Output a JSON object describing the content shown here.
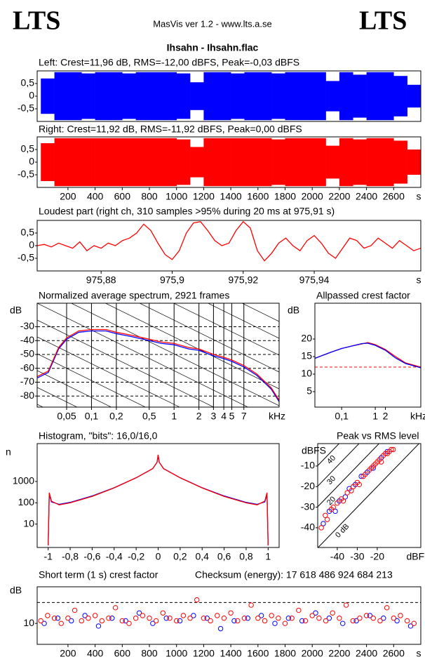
{
  "header": {
    "logo_left": "LTS",
    "logo_right": "LTS",
    "app": "MasVis ver 1.2 - www.lts.a.se",
    "file": "Ihsahn - Ihsahn.flac"
  },
  "chart_data": [
    {
      "type": "area",
      "title": "Left: Crest=11,96 dB, RMS=-12,00 dBFS, Peak=-0,03 dBFS",
      "xlim": [
        -27,
        2800
      ],
      "ylim": [
        -1,
        1
      ],
      "yticks": [
        {
          "value": 0.5,
          "label": "0,5"
        },
        0,
        {
          "value": -0.5,
          "label": "-0,5"
        }
      ],
      "series": [
        {
          "color": "#0000ff",
          "x": [
            0,
            100,
            200,
            300,
            400,
            500,
            600,
            700,
            800,
            900,
            1000,
            1100,
            1200,
            1300,
            1400,
            1500,
            1600,
            1700,
            1800,
            1900,
            2000,
            2100,
            2200,
            2300,
            2400,
            2500,
            2600,
            2700
          ],
          "values": [
            0.7,
            0.95,
            0.95,
            0.9,
            0.95,
            0.95,
            0.9,
            0.95,
            0.95,
            0.95,
            0.9,
            0.55,
            0.95,
            0.95,
            0.9,
            0.95,
            0.95,
            0.9,
            0.95,
            0.95,
            0.95,
            0.6,
            0.95,
            0.85,
            0.95,
            0.95,
            0.8,
            0.45
          ]
        }
      ]
    },
    {
      "type": "area",
      "title": "Right: Crest=11,92 dB, RMS=-11,92 dBFS, Peak=0,00 dBFS",
      "xlim": [
        -27,
        2800
      ],
      "ylim": [
        -1,
        1
      ],
      "xlabel": "s",
      "yticks": [
        {
          "value": 0.5,
          "label": "0,5"
        },
        0,
        {
          "value": -0.5,
          "label": "-0,5"
        }
      ],
      "xticks": [
        200,
        400,
        600,
        800,
        1000,
        1200,
        1400,
        1600,
        1800,
        2000,
        2200,
        2400,
        2600
      ],
      "series": [
        {
          "color": "#ff0000",
          "x": [
            0,
            100,
            200,
            300,
            400,
            500,
            600,
            700,
            800,
            900,
            1000,
            1100,
            1200,
            1300,
            1400,
            1500,
            1600,
            1700,
            1800,
            1900,
            2000,
            2100,
            2200,
            2300,
            2400,
            2500,
            2600,
            2700
          ],
          "values": [
            0.75,
            0.95,
            0.95,
            0.95,
            0.95,
            0.95,
            0.95,
            0.95,
            0.95,
            0.95,
            0.9,
            0.6,
            0.95,
            0.95,
            0.95,
            0.95,
            0.95,
            0.9,
            0.95,
            0.95,
            0.95,
            0.65,
            0.95,
            0.9,
            0.95,
            0.95,
            0.85,
            0.5
          ]
        }
      ]
    },
    {
      "type": "line",
      "title": "Loudest part (right ch, 310 samples >95% during 20 ms at 975,91 s)",
      "xlim": [
        975.862,
        975.97
      ],
      "ylim": [
        -1,
        1
      ],
      "xlabel": "s",
      "yticks": [
        {
          "value": 0.5,
          "label": "0,5"
        },
        0,
        {
          "value": -0.5,
          "label": "-0,5"
        }
      ],
      "xticks": [
        {
          "value": 975.88,
          "label": "975,88"
        },
        {
          "value": 975.9,
          "label": "975,9"
        },
        {
          "value": 975.92,
          "label": "975,92"
        },
        {
          "value": 975.94,
          "label": "975,94"
        }
      ],
      "series": [
        {
          "color": "#ff0000",
          "x": [
            975.862,
            975.864,
            975.866,
            975.868,
            975.87,
            975.872,
            975.874,
            975.876,
            975.878,
            975.88,
            975.882,
            975.884,
            975.886,
            975.888,
            975.89,
            975.892,
            975.894,
            975.896,
            975.898,
            975.9,
            975.902,
            975.904,
            975.906,
            975.908,
            975.91,
            975.912,
            975.914,
            975.916,
            975.918,
            975.92,
            975.922,
            975.924,
            975.926,
            975.928,
            975.93,
            975.932,
            975.934,
            975.936,
            975.938,
            975.94,
            975.942,
            975.944,
            975.946,
            975.948,
            975.95,
            975.952,
            975.954,
            975.956,
            975.958,
            975.96,
            975.962,
            975.964,
            975.966,
            975.968,
            975.97
          ],
          "values": [
            0.0,
            0.05,
            -0.05,
            0.1,
            0.0,
            -0.1,
            0.15,
            -0.2,
            0.0,
            -0.1,
            0.1,
            0.0,
            0.2,
            0.3,
            0.5,
            0.85,
            0.6,
            0.1,
            -0.35,
            -0.55,
            -0.2,
            0.5,
            0.9,
            0.95,
            0.6,
            0.2,
            0.0,
            0.1,
            0.6,
            0.95,
            0.7,
            -0.2,
            -0.6,
            -0.3,
            0.1,
            0.3,
            0.0,
            -0.2,
            0.2,
            0.4,
            0.1,
            -0.3,
            -0.5,
            -0.1,
            0.3,
            0.2,
            -0.1,
            0.0,
            0.3,
            0.1,
            -0.1,
            0.2,
            0.0,
            -0.2,
            -0.1
          ]
        }
      ]
    },
    {
      "type": "line",
      "title": "Normalized average spectrum, 2921 frames",
      "xscale": "log",
      "xlim": [
        0.022,
        18.7
      ],
      "ylim": [
        -88,
        -13
      ],
      "xlabel": "kHz",
      "ylabel": "dB",
      "grid": true,
      "xticks": [
        {
          "value": 0.05,
          "label": "0,05"
        },
        {
          "value": 0.1,
          "label": "0,1"
        },
        {
          "value": 0.2,
          "label": "0,2"
        },
        {
          "value": 0.5,
          "label": "0,5"
        },
        1,
        2,
        3,
        4,
        5,
        7
      ],
      "yticks": [
        -30,
        -40,
        -50,
        -60,
        -70,
        -80
      ],
      "series": [
        {
          "color": "#0000ff",
          "x": [
            0.022,
            0.03,
            0.04,
            0.05,
            0.07,
            0.1,
            0.15,
            0.2,
            0.3,
            0.5,
            0.7,
            1,
            1.5,
            2,
            3,
            4,
            5,
            7,
            10,
            15,
            18.7
          ],
          "values": [
            -67,
            -63,
            -46,
            -39,
            -34,
            -33,
            -33,
            -35,
            -37,
            -40,
            -42,
            -43,
            -46,
            -47,
            -51,
            -53,
            -55,
            -59,
            -65,
            -75,
            -84
          ]
        },
        {
          "color": "#ff0000",
          "x": [
            0.022,
            0.03,
            0.04,
            0.05,
            0.07,
            0.1,
            0.15,
            0.2,
            0.3,
            0.5,
            0.7,
            1,
            1.5,
            2,
            3,
            4,
            5,
            7,
            10,
            15,
            18.7
          ],
          "values": [
            -66,
            -62,
            -45,
            -38,
            -33,
            -32,
            -32,
            -34,
            -36,
            -39,
            -41,
            -42,
            -45,
            -46,
            -50,
            -52,
            -54,
            -58,
            -64,
            -74,
            -83
          ]
        }
      ]
    },
    {
      "type": "line",
      "title": "Allpassed crest factor",
      "xscale": "log",
      "xlim": [
        0.016,
        22.6
      ],
      "ylim": [
        0.6,
        30.2
      ],
      "xlabel": "kHz",
      "ylabel": "dB",
      "xticks": [
        {
          "value": 0.1,
          "label": "0,1"
        },
        1,
        2
      ],
      "yticks": [
        20,
        15,
        10,
        5
      ],
      "reference_line": {
        "value": 12,
        "color": "#ff0000"
      },
      "series": [
        {
          "color": "#ff0000",
          "x": [
            0.016,
            0.03,
            0.05,
            0.1,
            0.2,
            0.4,
            0.6,
            1,
            2,
            4,
            8,
            22.6
          ],
          "values": [
            14.5,
            15.5,
            16.3,
            17.3,
            18,
            18.6,
            19,
            18.4,
            17,
            15,
            13.2,
            12
          ]
        },
        {
          "color": "#0000ff",
          "x": [
            0.016,
            0.03,
            0.05,
            0.1,
            0.2,
            0.4,
            0.6,
            1,
            2,
            4,
            8,
            22.6
          ],
          "values": [
            14.5,
            15.5,
            16.3,
            17.3,
            18,
            18.7,
            18.8,
            18.2,
            16.8,
            14.6,
            13,
            11.8
          ]
        }
      ]
    },
    {
      "type": "line",
      "title": "Histogram, \"bits\": 16,0/16,0",
      "yscale": "log",
      "xlim": [
        -1.1,
        1.1
      ],
      "ylim": [
        0.8,
        60000
      ],
      "ylabel": "n",
      "xticks": [
        -1,
        {
          "value": -0.8,
          "label": "-0,8"
        },
        {
          "value": -0.6,
          "label": "-0,6"
        },
        {
          "value": -0.4,
          "label": "-0,4"
        },
        {
          "value": -0.2,
          "label": "-0,2"
        },
        0,
        {
          "value": 0.2,
          "label": "0,2"
        },
        {
          "value": 0.4,
          "label": "0,4"
        },
        {
          "value": 0.6,
          "label": "0,6"
        },
        {
          "value": 0.8,
          "label": "0,8"
        },
        1
      ],
      "yticks": [
        10,
        100,
        1000
      ],
      "series": [
        {
          "color": "#0000ff",
          "x": [
            -1.0,
            -0.99,
            -0.97,
            -0.9,
            -0.8,
            -0.6,
            -0.4,
            -0.2,
            -0.05,
            -0.01,
            0,
            0.01,
            0.05,
            0.2,
            0.4,
            0.6,
            0.8,
            0.9,
            0.97,
            0.99,
            1.0
          ],
          "values": [
            1,
            250,
            110,
            85,
            105,
            210,
            510,
            1500,
            4000,
            8000,
            17000,
            8000,
            4000,
            1500,
            510,
            210,
            105,
            85,
            110,
            250,
            1
          ]
        },
        {
          "color": "#ff0000",
          "x": [
            -1.0,
            -0.99,
            -0.97,
            -0.9,
            -0.8,
            -0.6,
            -0.4,
            -0.2,
            -0.05,
            -0.01,
            0,
            0.01,
            0.05,
            0.2,
            0.4,
            0.6,
            0.8,
            0.9,
            0.97,
            0.99,
            1.0
          ],
          "values": [
            1,
            300,
            120,
            80,
            100,
            200,
            500,
            1500,
            4000,
            8000,
            18000,
            8000,
            4000,
            1500,
            500,
            200,
            100,
            80,
            120,
            300,
            1
          ]
        }
      ]
    },
    {
      "type": "scatter",
      "title": "Peak vs RMS level",
      "xlim": [
        -49.8,
        1.8
      ],
      "ylim": [
        -49.6,
        0.9
      ],
      "xlabel": "dBFS",
      "ylabel": "dBFS",
      "xticks": [
        -40,
        -30,
        -20
      ],
      "yticks": [
        -10,
        -20,
        -30,
        -40
      ],
      "crest_lines": [
        {
          "value": 40,
          "label": "40"
        },
        {
          "value": 30,
          "label": "30"
        },
        {
          "value": 20,
          "label": "20"
        },
        {
          "value": 0,
          "label": "0 dB"
        }
      ],
      "series": [
        {
          "color": "#0000ff",
          "x": [
            -47,
            -44,
            -41,
            -39,
            -36,
            -34,
            -31,
            -28,
            -25,
            -22,
            -18,
            -15
          ],
          "values": [
            -38,
            -32,
            -32,
            -27,
            -25,
            -21,
            -19,
            -15,
            -13,
            -11,
            -6,
            -3
          ]
        },
        {
          "color": "#ff0000",
          "x": [
            -48,
            -46,
            -45,
            -43,
            -42,
            -40,
            -38,
            -37,
            -35,
            -33,
            -32,
            -30,
            -29,
            -27,
            -26,
            -24,
            -23,
            -22,
            -21,
            -20,
            -19,
            -18,
            -17,
            -16,
            -15,
            -14,
            -13,
            -12
          ],
          "values": [
            -40,
            -34,
            -36,
            -31,
            -30,
            -28,
            -26,
            -27,
            -23,
            -22,
            -20,
            -18,
            -19,
            -15,
            -14,
            -12,
            -11,
            -10,
            -9,
            -8,
            -7,
            -8,
            -5,
            -4,
            -4,
            -3,
            -2,
            -2
          ]
        }
      ]
    },
    {
      "type": "scatter",
      "title": "Short term (1 s) crest factor",
      "annotation": "Checksum (energy):  17 618 486 924 684 213",
      "xlim": [
        -27,
        2800
      ],
      "ylim": [
        2,
        24
      ],
      "xlabel": "s",
      "ylabel": "dB",
      "xticks": [
        200,
        400,
        600,
        800,
        1000,
        1200,
        1400,
        1600,
        1800,
        2000,
        2200,
        2400,
        2600
      ],
      "yticks": [
        10
      ],
      "reference_line": {
        "value": 18,
        "color": "#000000"
      },
      "series": [
        {
          "color": "#0000ff",
          "x": [
            25,
            125,
            225,
            325,
            425,
            525,
            625,
            725,
            825,
            925,
            1025,
            1125,
            1225,
            1325,
            1425,
            1525,
            1625,
            1725,
            1825,
            1925,
            2025,
            2125,
            2225,
            2325,
            2425,
            2525,
            2625,
            2725
          ],
          "values": [
            10,
            12,
            11,
            13,
            9,
            12,
            11,
            14,
            10,
            12,
            11,
            13,
            12,
            8,
            11,
            12,
            13,
            10,
            12,
            11,
            14,
            12,
            10,
            11,
            13,
            12,
            11,
            9
          ]
        },
        {
          "color": "#ff0000",
          "x": [
            0,
            50,
            100,
            150,
            200,
            250,
            300,
            350,
            400,
            450,
            500,
            550,
            600,
            650,
            700,
            750,
            800,
            850,
            900,
            950,
            1000,
            1050,
            1100,
            1150,
            1200,
            1250,
            1300,
            1350,
            1400,
            1450,
            1500,
            1550,
            1600,
            1650,
            1700,
            1750,
            1800,
            1850,
            1900,
            1950,
            2000,
            2050,
            2100,
            2150,
            2200,
            2250,
            2300,
            2350,
            2400,
            2450,
            2500,
            2550,
            2600,
            2650,
            2700,
            2750
          ],
          "values": [
            11,
            13,
            12,
            10,
            12,
            15,
            11,
            12,
            13,
            11,
            12,
            16,
            11,
            10,
            12,
            13,
            12,
            11,
            14,
            12,
            11,
            13,
            12,
            19,
            12,
            11,
            13,
            12,
            14,
            11,
            12,
            17,
            12,
            11,
            13,
            12,
            10,
            12,
            15,
            11,
            13,
            12,
            11,
            14,
            12,
            17,
            11,
            12,
            13,
            12,
            11,
            16,
            12,
            13,
            11,
            10
          ]
        }
      ]
    }
  ]
}
